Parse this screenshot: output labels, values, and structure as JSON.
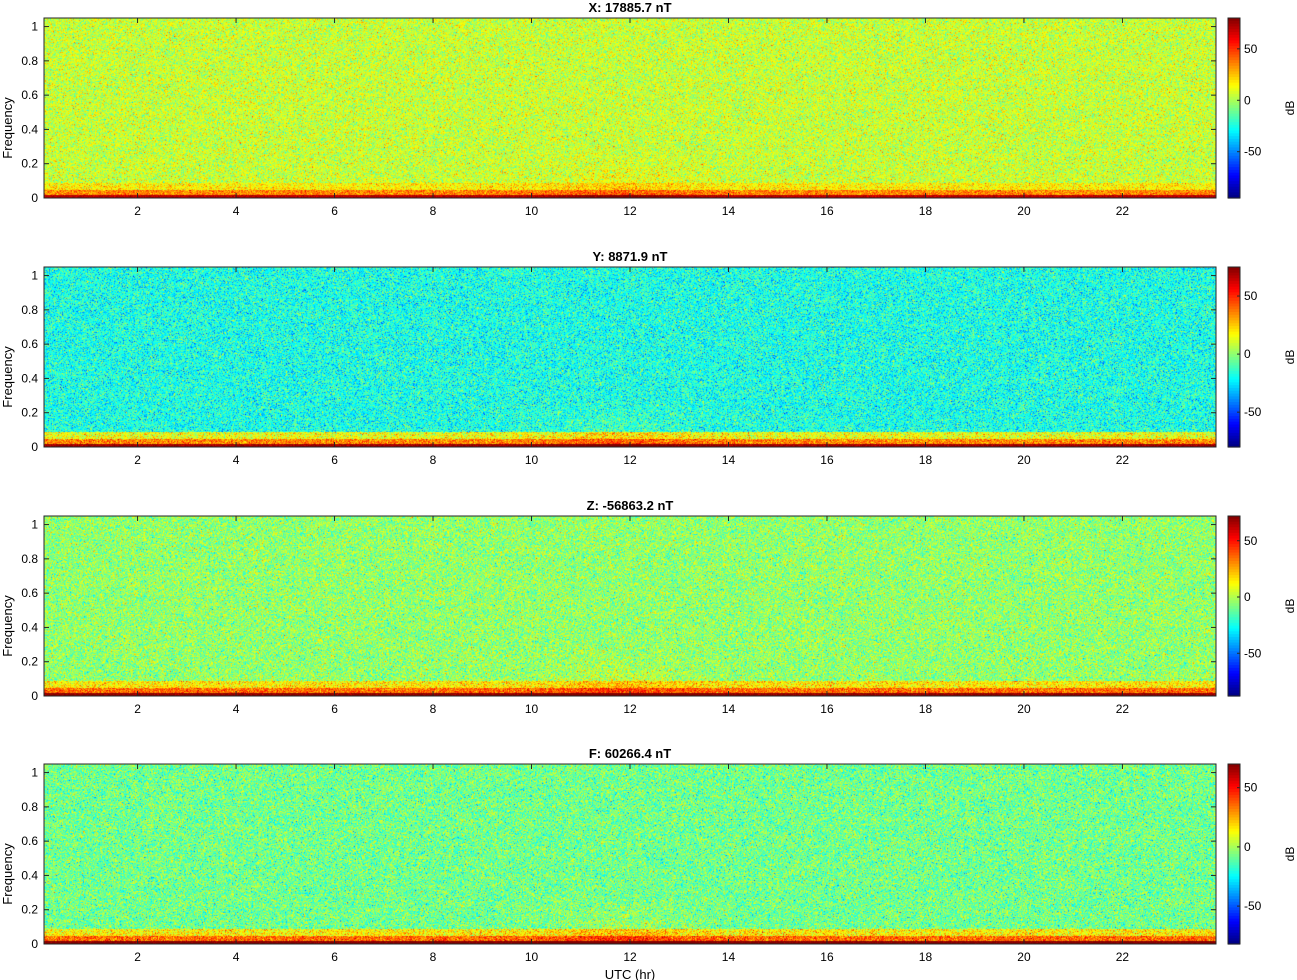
{
  "chart_data": [
    {
      "type": "heatmap",
      "title": "X: 17885.7 nT",
      "ylabel": "Frequency",
      "xlabel": "",
      "xlim": [
        0.1,
        23.9
      ],
      "ylim": [
        0,
        1.05
      ],
      "xticks": [
        "2",
        "4",
        "6",
        "8",
        "10",
        "12",
        "14",
        "16",
        "18",
        "20",
        "22"
      ],
      "yticks": [
        "0",
        "0.2",
        "0.4",
        "0.6",
        "0.8",
        "1"
      ],
      "colorbar": {
        "label": "dB",
        "ticks": [
          "50",
          "0",
          "-50"
        ],
        "range": [
          -95,
          80
        ],
        "tick_values": [
          50,
          0,
          -50
        ]
      },
      "background_db": 5,
      "colormap": "jet"
    },
    {
      "type": "heatmap",
      "title": "Y: 8871.9 nT",
      "ylabel": "Frequency",
      "xlabel": "",
      "xlim": [
        0.1,
        23.9
      ],
      "ylim": [
        0,
        1.05
      ],
      "xticks": [
        "2",
        "4",
        "6",
        "8",
        "10",
        "12",
        "14",
        "16",
        "18",
        "20",
        "22"
      ],
      "yticks": [
        "0",
        "0.2",
        "0.4",
        "0.6",
        "0.8",
        "1"
      ],
      "colorbar": {
        "label": "dB",
        "ticks": [
          "50",
          "0",
          "-50"
        ],
        "range": [
          -80,
          75
        ],
        "tick_values": [
          50,
          0,
          -50
        ]
      },
      "background_db": -18,
      "colormap": "jet"
    },
    {
      "type": "heatmap",
      "title": "Z: -56863.2 nT",
      "ylabel": "Frequency",
      "xlabel": "",
      "xlim": [
        0.1,
        23.9
      ],
      "ylim": [
        0,
        1.05
      ],
      "xticks": [
        "2",
        "4",
        "6",
        "8",
        "10",
        "12",
        "14",
        "16",
        "18",
        "20",
        "22"
      ],
      "yticks": [
        "0",
        "0.2",
        "0.4",
        "0.6",
        "0.8",
        "1"
      ],
      "colorbar": {
        "label": "dB",
        "ticks": [
          "50",
          "0",
          "-50"
        ],
        "range": [
          -88,
          72
        ],
        "tick_values": [
          50,
          0,
          -50
        ]
      },
      "background_db": -5,
      "colormap": "jet"
    },
    {
      "type": "heatmap",
      "title": "F: 60266.4 nT",
      "ylabel": "Frequency",
      "xlabel": "UTC (hr)",
      "xlim": [
        0.1,
        23.9
      ],
      "ylim": [
        0,
        1.05
      ],
      "xticks": [
        "2",
        "4",
        "6",
        "8",
        "10",
        "12",
        "14",
        "16",
        "18",
        "20",
        "22"
      ],
      "yticks": [
        "0",
        "0.2",
        "0.4",
        "0.6",
        "0.8",
        "1"
      ],
      "colorbar": {
        "label": "dB",
        "ticks": [
          "50",
          "0",
          "-50"
        ],
        "range": [
          -82,
          70
        ],
        "tick_values": [
          50,
          0,
          -50
        ]
      },
      "background_db": -8,
      "colormap": "jet"
    }
  ]
}
